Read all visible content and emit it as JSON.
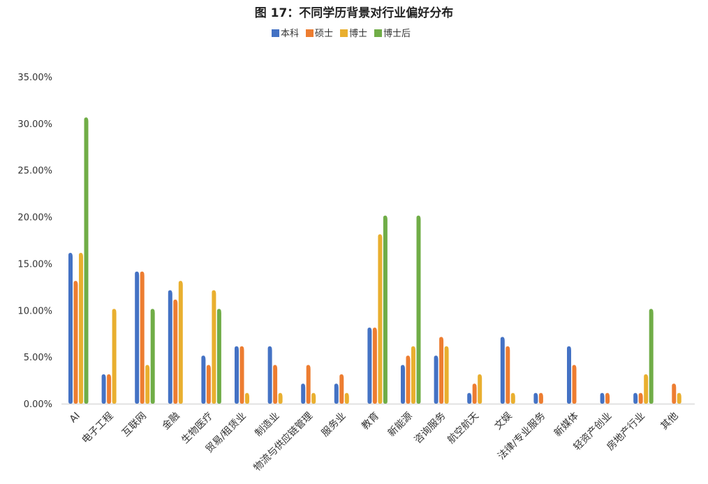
{
  "chart_data": {
    "type": "bar",
    "title": "图 17：不同学历背景对行业偏好分布",
    "xlabel": "",
    "ylabel": "",
    "ylim": [
      0,
      35
    ],
    "yticks": [
      "0.00%",
      "5.00%",
      "10.00%",
      "15.00%",
      "20.00%",
      "25.00%",
      "30.00%",
      "35.00%"
    ],
    "grid": false,
    "legend_position": "top",
    "categories": [
      "AI",
      "电子工程",
      "互联网",
      "金融",
      "生物医疗",
      "贸易/租赁业",
      "制造业",
      "物流与供应链管理",
      "服务业",
      "教育",
      "新能源",
      "咨询服务",
      "航空航天",
      "文娱",
      "法律/专业服务",
      "新媒体",
      "轻资产创业",
      "房地产行业",
      "其他"
    ],
    "series": [
      {
        "name": "本科",
        "color": "#4472C4",
        "values": [
          16,
          3,
          14,
          12,
          5,
          6,
          6,
          2,
          2,
          8,
          4,
          5,
          1,
          7,
          1,
          6,
          1,
          1,
          0
        ]
      },
      {
        "name": "硕士",
        "color": "#ED7D31",
        "values": [
          13,
          3,
          14,
          11,
          4,
          6,
          4,
          4,
          3,
          8,
          5,
          7,
          2,
          6,
          1,
          4,
          1,
          1,
          2
        ]
      },
      {
        "name": "博士",
        "color": "#E9AF2F",
        "values": [
          16,
          10,
          4,
          13,
          12,
          1,
          1,
          1,
          1,
          18,
          6,
          6,
          3,
          1,
          0,
          0,
          0,
          3,
          1
        ]
      },
      {
        "name": "博士后",
        "color": "#70AD47",
        "values": [
          30.5,
          0,
          10,
          0,
          10,
          0,
          0,
          0,
          0,
          20,
          20,
          0,
          0,
          0,
          0,
          0,
          0,
          10,
          0
        ]
      }
    ]
  }
}
